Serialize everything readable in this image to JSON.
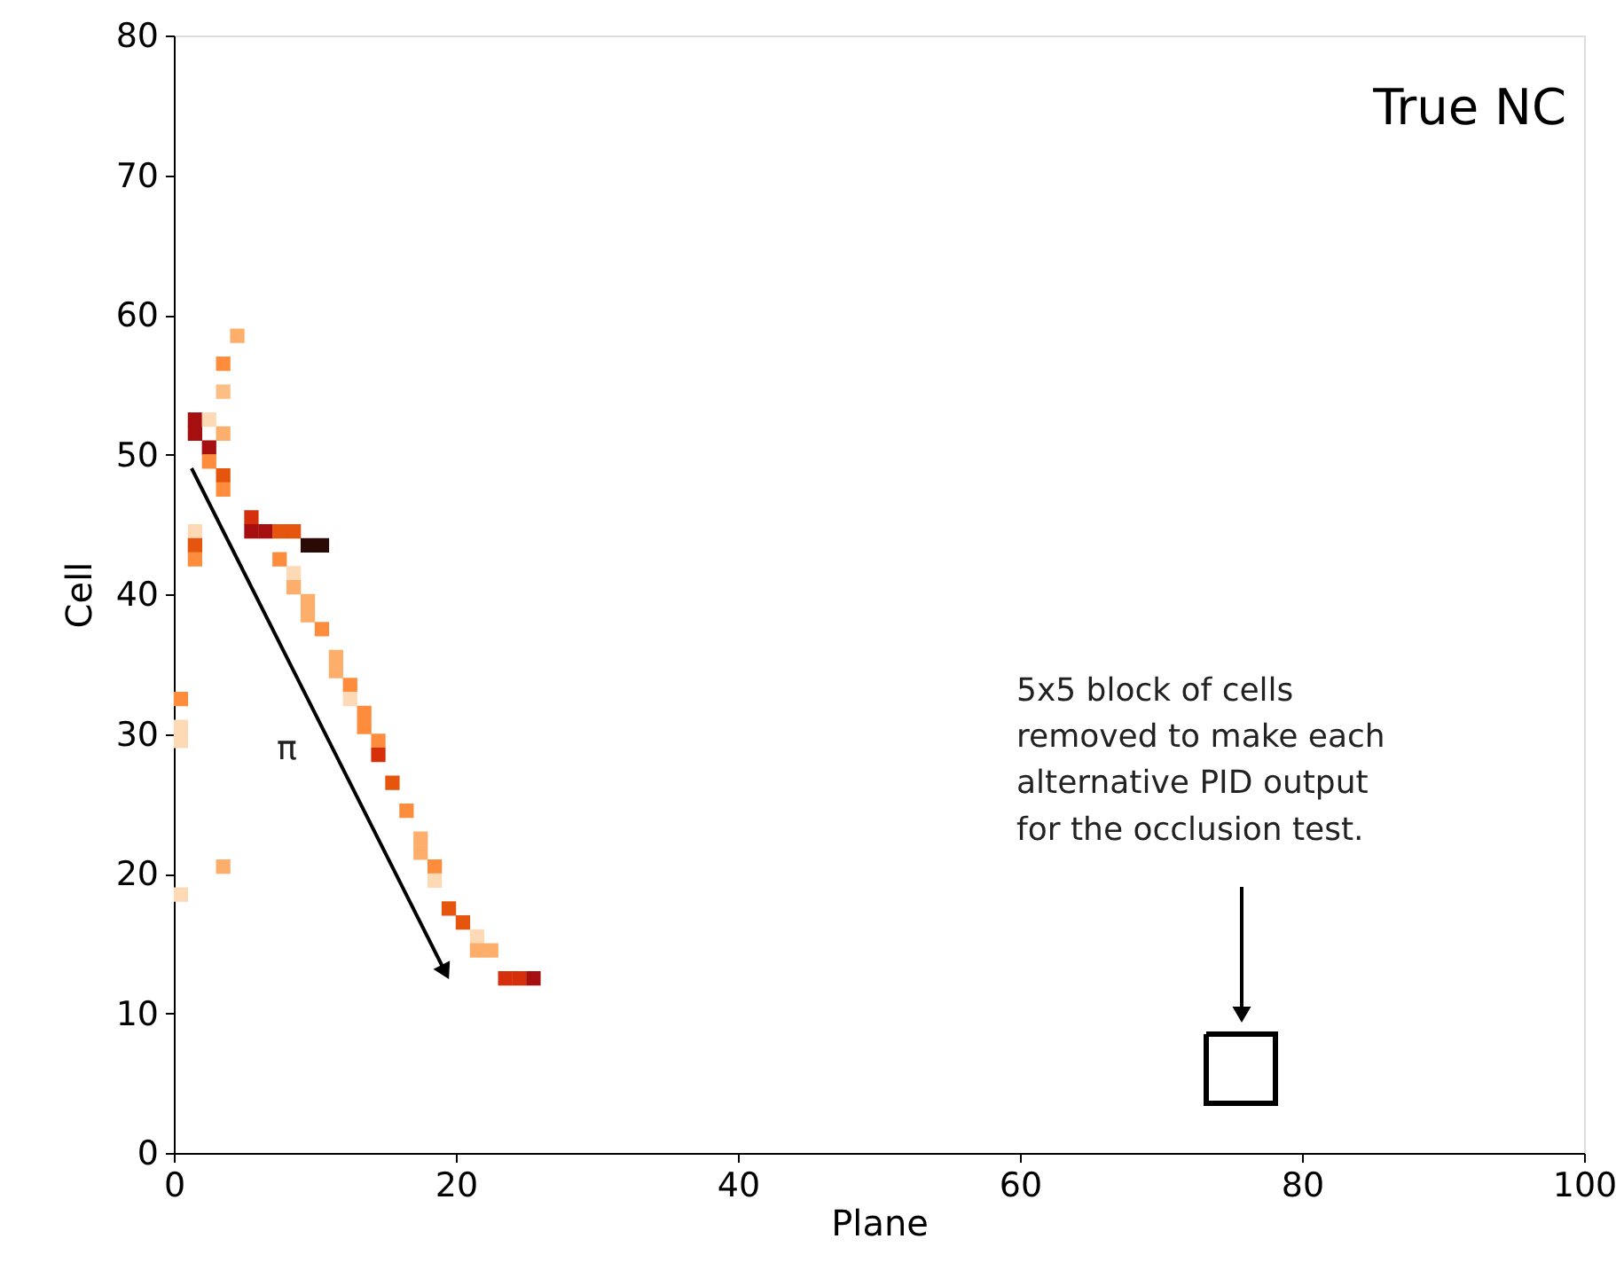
{
  "chart_data": {
    "type": "scatter",
    "xlabel": "Plane",
    "ylabel": "Cell",
    "xlim": [
      0,
      100
    ],
    "ylim": [
      0,
      80
    ],
    "xticks": [
      0,
      20,
      40,
      60,
      80,
      100
    ],
    "yticks": [
      0,
      10,
      20,
      30,
      40,
      50,
      60,
      70,
      80
    ],
    "grid": false,
    "marker": "square",
    "annotations": [
      "True NC",
      "π",
      "5x5 block of cells\nremoved to make each\nalternative PID output\nfor the occlusion test."
    ],
    "x": [
      4.5,
      3.5,
      3.5,
      1.5,
      1.5,
      2.5,
      3.5,
      2.5,
      2.5,
      3.5,
      3.5,
      5.5,
      5.5,
      6.5,
      7.5,
      8.5,
      9.5,
      10.5,
      1.5,
      1.5,
      1.5,
      7.5,
      8.5,
      8.5,
      9.5,
      9.5,
      10.5,
      11.5,
      11.5,
      12.5,
      12.5,
      13.5,
      13.5,
      14.5,
      14.5,
      15.5,
      16.5,
      17.5,
      17.5,
      18.5,
      18.5,
      19.5,
      20.5,
      21.5,
      21.5,
      22.5,
      23.5,
      24.5,
      25.5,
      0.5,
      0.5,
      0.5,
      3.5,
      0.5
    ],
    "series": [
      {
        "values": [
          58.5,
          56.5,
          54.5,
          52.5,
          51.5,
          52.5,
          51.5,
          50.5,
          49.5,
          48.5,
          47.5,
          45.5,
          44.5,
          44.5,
          44.5,
          44.5,
          43.5,
          43.5,
          44.5,
          43.5,
          42.5,
          42.5,
          41.5,
          40.5,
          39.5,
          38.5,
          37.5,
          35.5,
          34.5,
          33.5,
          32.5,
          31.5,
          30.5,
          29.5,
          28.5,
          26.5,
          24.5,
          22.5,
          21.5,
          20.5,
          19.5,
          17.5,
          16.5,
          15.5,
          14.5,
          14.5,
          12.5,
          12.5,
          12.5,
          32.5,
          30.5,
          29.5,
          20.5,
          18.5
        ],
        "colors": [
          "#fdae6b",
          "#fd8d3c",
          "#fdbe85",
          "#a50f0f",
          "#a50f0f",
          "#fdd9b5",
          "#fdae6b",
          "#a50f0f",
          "#fd8d3c",
          "#e6550d",
          "#fd8d3c",
          "#d62f0b",
          "#a50f0f",
          "#a50f0f",
          "#e6550d",
          "#e6550d",
          "#2b0a05",
          "#2b0a05",
          "#fdd9b5",
          "#e6550d",
          "#fd8d3c",
          "#fd8d3c",
          "#fdd9b5",
          "#fdae6b",
          "#fdae6b",
          "#fdae6b",
          "#fd8d3c",
          "#fdae6b",
          "#fdae6b",
          "#fd8d3c",
          "#fdd9b5",
          "#fd8d3c",
          "#fd8d3c",
          "#fd8d3c",
          "#d62f0b",
          "#e6550d",
          "#fd8d3c",
          "#fdae6b",
          "#fdae6b",
          "#fd8d3c",
          "#fdd9b5",
          "#e6550d",
          "#e6550d",
          "#fdd9b5",
          "#fdae6b",
          "#fdae6b",
          "#d62f0b",
          "#d62f0b",
          "#a50f0f",
          "#fd8d3c",
          "#fdd9b5",
          "#fdd9b5",
          "#fdae6b",
          "#fdd9b5"
        ]
      }
    ]
  }
}
